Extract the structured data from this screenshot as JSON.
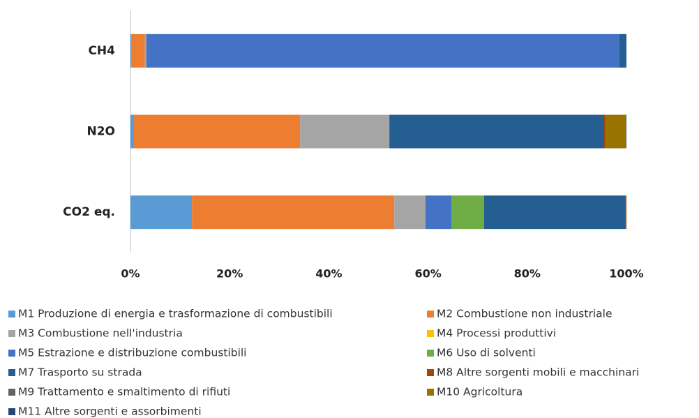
{
  "chart_data": {
    "type": "stacked_bar_horizontal",
    "categories": [
      "CH4",
      "N2O",
      "CO2 eq."
    ],
    "series": [
      {
        "name": "M1 Produzione di energia e trasformazione di combustibili",
        "color": "#5b9bd5",
        "values": [
          0.2,
          0.7,
          12.4
        ]
      },
      {
        "name": "M2 Combustione non industriale",
        "color": "#ed7d31",
        "values": [
          2.7,
          33.5,
          40.8
        ]
      },
      {
        "name": "M3 Combustione nell'industria",
        "color": "#a5a5a5",
        "values": [
          0.3,
          18.0,
          6.3
        ]
      },
      {
        "name": "M4 Processi produttivi",
        "color": "#ffc000",
        "values": [
          0,
          0,
          0
        ]
      },
      {
        "name": "M5 Estrazione e distribuzione combustibili",
        "color": "#4472c4",
        "values": [
          95.4,
          0,
          5.2
        ]
      },
      {
        "name": "M6 Uso di solventi",
        "color": "#70ad47",
        "values": [
          0,
          0,
          6.6
        ]
      },
      {
        "name": "M7 Trasporto su strada",
        "color": "#255e91",
        "values": [
          1.4,
          43.3,
          28.5
        ]
      },
      {
        "name": "M8 Altre sorgenti mobili e macchinari",
        "color": "#9e480e",
        "values": [
          0,
          0.3,
          0.2
        ]
      },
      {
        "name": "M9 Trattamento e smaltimento di rifiuti",
        "color": "#636363",
        "values": [
          0,
          0,
          0
        ]
      },
      {
        "name": "M10 Agricoltura",
        "color": "#997300",
        "values": [
          0,
          4.1,
          0
        ]
      },
      {
        "name": "M11 Altre sorgenti e assorbimenti",
        "color": "#264478",
        "values": [
          0,
          0.1,
          0
        ]
      }
    ],
    "xlim": [
      0,
      100
    ],
    "xticks": [
      {
        "value": 0,
        "label": "0%"
      },
      {
        "value": 20,
        "label": "20%"
      },
      {
        "value": 40,
        "label": "40%"
      },
      {
        "value": 60,
        "label": "60%"
      },
      {
        "value": 80,
        "label": "80%"
      },
      {
        "value": 100,
        "label": "100%"
      }
    ],
    "legend": "bottom"
  }
}
